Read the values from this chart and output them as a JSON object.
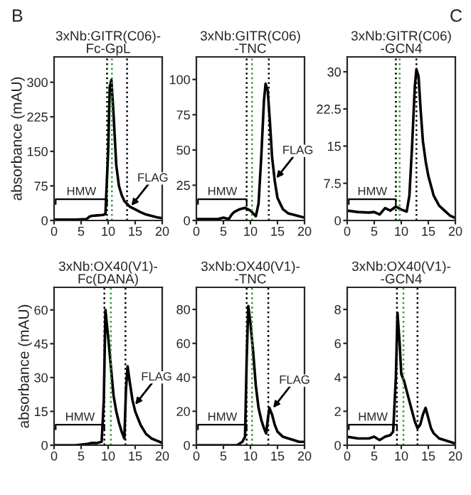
{
  "chart_data": [
    {
      "type": "line",
      "title": "3xNb:GITR(C06)-\nFc-GpL",
      "ylabel": "absorbance (mAU)",
      "xlim": [
        0,
        20
      ],
      "xticks": [
        0,
        5,
        10,
        15,
        20
      ],
      "ylim": [
        0,
        355
      ],
      "yticks": [
        0,
        75,
        150,
        225,
        300
      ],
      "tick_labels": true,
      "series": [
        {
          "color": "#000000",
          "x": [
            0,
            2,
            4,
            6,
            6.5,
            7,
            8,
            9,
            9.5,
            10,
            10.3,
            10.6,
            11,
            11.5,
            12,
            12.5,
            13,
            14,
            15,
            16,
            17,
            18,
            19,
            20
          ],
          "values": [
            2,
            2,
            2,
            3,
            8,
            10,
            11,
            12,
            14,
            150,
            290,
            305,
            230,
            120,
            75,
            55,
            42,
            30,
            24,
            18,
            13,
            10,
            7,
            5
          ]
        }
      ],
      "ref_lines": [
        {
          "axis": "x",
          "value": 9.8,
          "color": "#000000",
          "line_style": "dotted"
        },
        {
          "axis": "x",
          "value": 10.7,
          "color": "#2ca02c",
          "line_style": "dotted"
        },
        {
          "axis": "x",
          "value": 13.5,
          "color": "#000000",
          "line_style": "dotted"
        }
      ],
      "annotations": [
        "HMW",
        {
          "text": "FLAG",
          "x": 14.3,
          "y": 32
        },
        "B"
      ]
    },
    {
      "type": "line",
      "title": "3xNb:GITR(C06)\n-TNC",
      "xlim": [
        0,
        20
      ],
      "xticks": [
        0,
        5,
        10,
        15,
        20
      ],
      "ylim": [
        0,
        116
      ],
      "yticks": [
        0,
        25,
        50,
        75,
        100
      ],
      "tick_labels": true,
      "series": [
        {
          "color": "#000000",
          "x": [
            0,
            2,
            4,
            5,
            6,
            6.5,
            7,
            8,
            9,
            10,
            10.5,
            11,
            11.5,
            12,
            12.5,
            12.8,
            13.2,
            13.6,
            14,
            14.5,
            15,
            16,
            17,
            18,
            19,
            20
          ],
          "values": [
            1,
            1,
            1,
            2,
            1,
            4,
            6,
            8,
            9,
            7,
            5,
            3,
            12,
            45,
            85,
            97,
            92,
            70,
            45,
            28,
            16,
            8,
            5,
            4,
            3,
            2
          ]
        }
      ],
      "ref_lines": [
        {
          "axis": "x",
          "value": 9.3,
          "color": "#000000",
          "line_style": "dotted"
        },
        {
          "axis": "x",
          "value": 10.3,
          "color": "#2ca02c",
          "line_style": "dotted"
        },
        {
          "axis": "x",
          "value": 13.4,
          "color": "#000000",
          "line_style": "dotted"
        }
      ],
      "annotations": [
        "HMW",
        {
          "text": "FLAG",
          "x": 14.8,
          "y": 30
        }
      ]
    },
    {
      "type": "line",
      "title": "3xNb:GITR(C06)\n-GCN4",
      "xlim": [
        0,
        20
      ],
      "xticks": [
        0,
        5,
        10,
        15,
        20
      ],
      "ylim": [
        0,
        33
      ],
      "yticks": [
        0,
        7.5,
        15,
        22.5,
        30
      ],
      "tick_labels": true,
      "series": [
        {
          "color": "#000000",
          "x": [
            0,
            2,
            4,
            5,
            6,
            7,
            8,
            9,
            10,
            11,
            11.5,
            12,
            12.5,
            12.8,
            13.2,
            13.6,
            14,
            14.5,
            15,
            16,
            17,
            18,
            19,
            20
          ],
          "values": [
            2,
            1.7,
            1.6,
            1.7,
            1.2,
            2.5,
            2,
            2.8,
            2.2,
            1.8,
            5,
            15,
            27,
            30.5,
            29,
            22,
            16,
            12,
            9,
            5,
            3,
            2,
            1,
            0.5
          ]
        }
      ],
      "ref_lines": [
        {
          "axis": "x",
          "value": 9,
          "color": "#000000",
          "line_style": "dotted"
        },
        {
          "axis": "x",
          "value": 9.7,
          "color": "#2ca02c",
          "line_style": "dotted"
        },
        {
          "axis": "x",
          "value": 12.8,
          "color": "#000000",
          "line_style": "dotted"
        }
      ],
      "annotations": [
        "HMW",
        "C"
      ]
    },
    {
      "type": "line",
      "title": "3xNb:OX40(V1)-\nFc(DANA)",
      "ylabel": "absorbance (mAU)",
      "xlim": [
        0,
        20
      ],
      "xticks": [
        0,
        5,
        10,
        15,
        20
      ],
      "ylim": [
        0,
        70
      ],
      "yticks": [
        0,
        15,
        30,
        45,
        60
      ],
      "tick_labels": true,
      "series": [
        {
          "color": "#000000",
          "x": [
            0,
            2,
            4,
            6,
            7,
            8,
            8.8,
            9.2,
            9.5,
            10,
            10.5,
            11,
            11.5,
            12,
            12.5,
            13,
            13.3,
            13.6,
            14,
            14.5,
            15,
            16,
            17,
            18,
            19,
            20
          ],
          "values": [
            0,
            0,
            0,
            0.5,
            1,
            1,
            1.5,
            20,
            60,
            48,
            35,
            22,
            15,
            10,
            6,
            3,
            25,
            35,
            28,
            20,
            15,
            9,
            5,
            3,
            2,
            1
          ]
        }
      ],
      "ref_lines": [
        {
          "axis": "x",
          "value": 9.3,
          "color": "#000000",
          "line_style": "dotted"
        },
        {
          "axis": "x",
          "value": 10.5,
          "color": "#2ca02c",
          "line_style": "dotted"
        },
        {
          "axis": "x",
          "value": 13.2,
          "color": "#000000",
          "line_style": "dotted"
        }
      ],
      "annotations": [
        "HMW",
        {
          "text": "FLAG",
          "x": 15,
          "y": 18
        }
      ]
    },
    {
      "type": "line",
      "title": "3xNb:OX40(V1)-\n-TNC",
      "xlim": [
        0,
        20
      ],
      "xticks": [
        0,
        5,
        10,
        15,
        20
      ],
      "ylim": [
        0,
        93
      ],
      "yticks": [
        0,
        20,
        40,
        60,
        80
      ],
      "tick_labels": true,
      "series": [
        {
          "color": "#000000",
          "x": [
            0,
            2,
            4,
            6,
            7.5,
            8.5,
            9,
            9.3,
            9.6,
            10,
            10.5,
            11,
            11.5,
            12,
            12.5,
            12.9,
            13.2,
            13.5,
            14,
            14.5,
            15,
            16,
            17,
            18,
            19,
            20
          ],
          "values": [
            0,
            0,
            0,
            0,
            0,
            2,
            5,
            50,
            82,
            72,
            55,
            35,
            22,
            15,
            10,
            7,
            15,
            22,
            18,
            12,
            8,
            5,
            4,
            3,
            2,
            2
          ]
        }
      ],
      "ref_lines": [
        {
          "axis": "x",
          "value": 9.3,
          "color": "#000000",
          "line_style": "dotted"
        },
        {
          "axis": "x",
          "value": 10.3,
          "color": "#2ca02c",
          "line_style": "dotted"
        },
        {
          "axis": "x",
          "value": 13.3,
          "color": "#000000",
          "line_style": "dotted"
        }
      ],
      "annotations": [
        "HMW",
        {
          "text": "FLAG",
          "x": 14.2,
          "y": 22
        }
      ]
    },
    {
      "type": "line",
      "title": "3xNb:OX40(V1)-\n-GCN4",
      "xlim": [
        0,
        20
      ],
      "xticks": [
        0,
        5,
        10,
        15,
        20
      ],
      "ylim": [
        0,
        9.3
      ],
      "yticks": [
        0,
        2,
        4,
        6,
        8
      ],
      "tick_labels": true,
      "series": [
        {
          "color": "#000000",
          "x": [
            0,
            2,
            4,
            5,
            5.5,
            6,
            7,
            8,
            8.5,
            9,
            9.3,
            9.7,
            10,
            10.5,
            11,
            11.5,
            12,
            12.5,
            13,
            13.5,
            14,
            14.5,
            15,
            15.5,
            16,
            17,
            18,
            19,
            20
          ],
          "values": [
            0.5,
            0.4,
            0.4,
            0.5,
            0.4,
            0.3,
            0.5,
            0.6,
            0.8,
            4,
            7.8,
            6,
            4.2,
            3.8,
            3.2,
            2.6,
            2,
            1.4,
            1,
            1.2,
            1.8,
            2.2,
            1.6,
            1,
            0.7,
            0.4,
            0.3,
            0.2,
            0.1
          ]
        }
      ],
      "ref_lines": [
        {
          "axis": "x",
          "value": 9.2,
          "color": "#000000",
          "line_style": "dotted"
        },
        {
          "axis": "x",
          "value": 10.4,
          "color": "#2ca02c",
          "line_style": "dotted"
        },
        {
          "axis": "x",
          "value": 13,
          "color": "#000000",
          "line_style": "dotted"
        }
      ],
      "annotations": [
        "HMW"
      ]
    }
  ]
}
